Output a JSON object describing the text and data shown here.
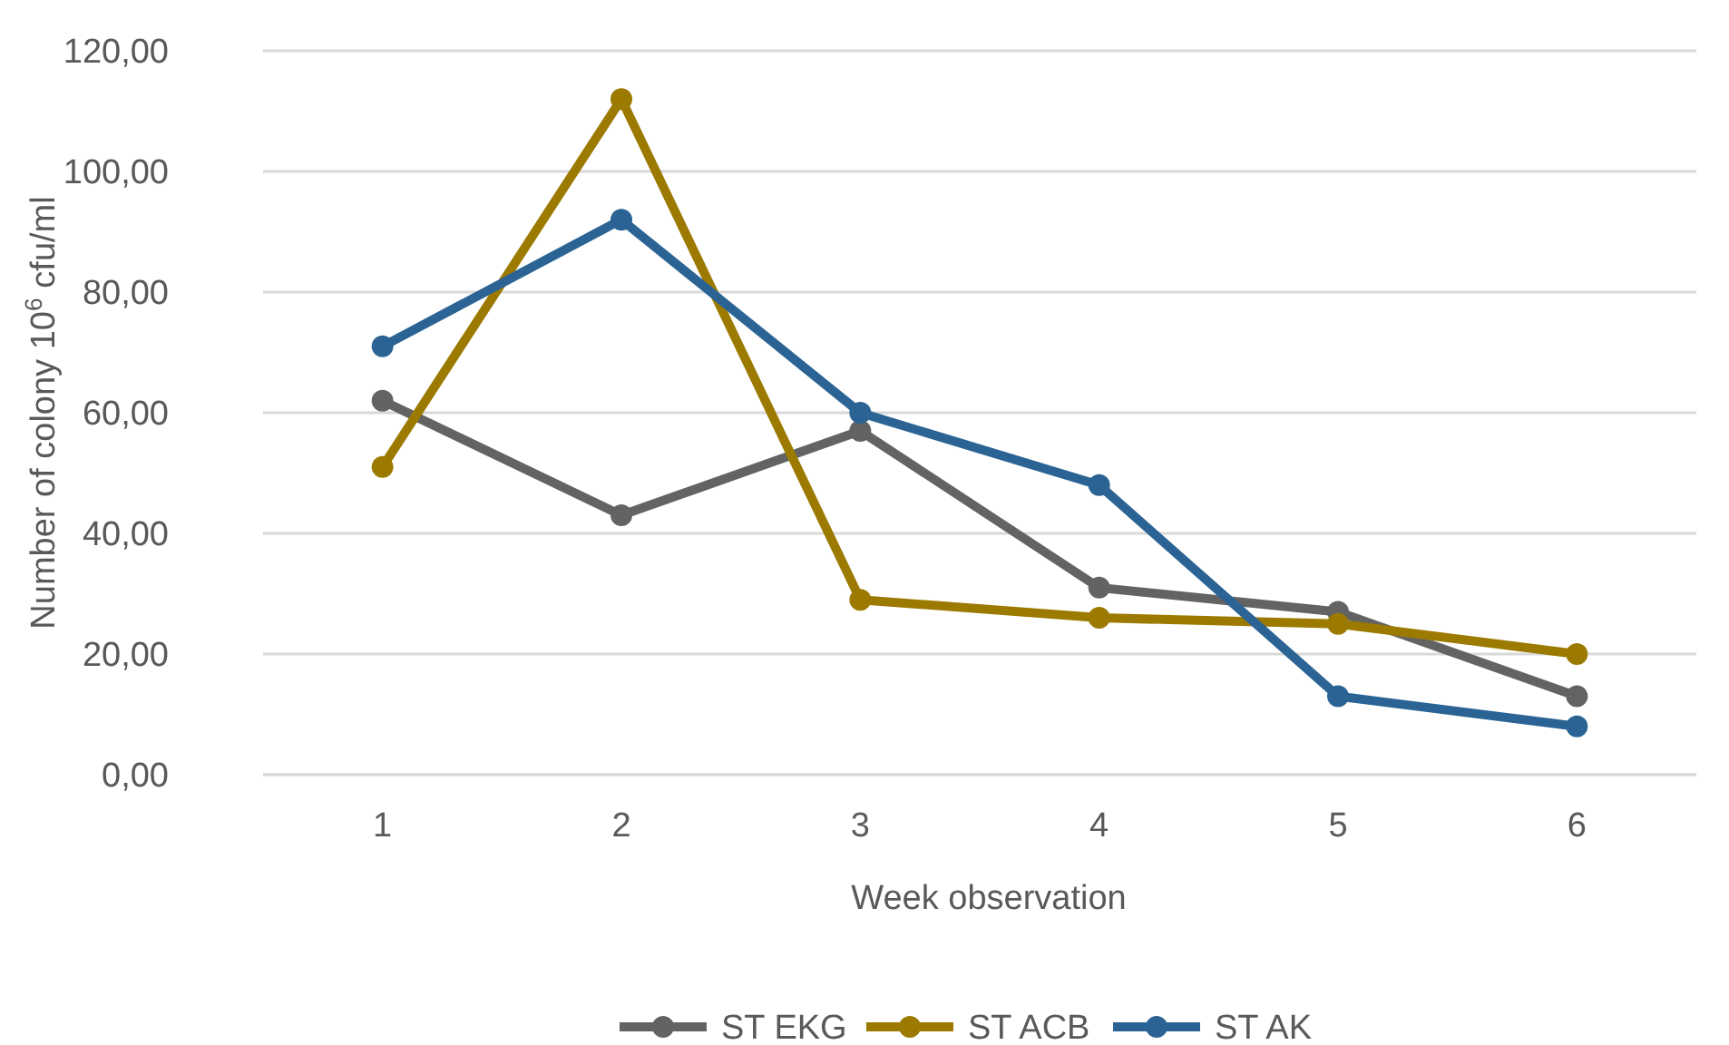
{
  "chart_data": {
    "type": "line",
    "xlabel": "Week observation",
    "ylabel": "Number of colony 10$^{6}$ cfu/ml",
    "categories": [
      "1",
      "2",
      "3",
      "4",
      "5",
      "6"
    ],
    "series": [
      {
        "name": "ST EKG",
        "color": "#636363",
        "values": [
          62,
          43,
          57,
          31,
          27,
          13
        ]
      },
      {
        "name": "ST ACB",
        "color": "#9c7a00",
        "values": [
          51,
          112,
          29,
          26,
          25,
          20
        ]
      },
      {
        "name": "ST AK",
        "color": "#2b6494",
        "values": [
          71,
          92,
          60,
          48,
          13,
          8
        ]
      }
    ],
    "ylim": [
      0,
      120
    ],
    "yticks": [
      {
        "value": 0,
        "label": "0,00"
      },
      {
        "value": 20,
        "label": "20,00"
      },
      {
        "value": 40,
        "label": "40,00"
      },
      {
        "value": 60,
        "label": "60,00"
      },
      {
        "value": 80,
        "label": "80,00"
      },
      {
        "value": 100,
        "label": "100,00"
      },
      {
        "value": 120,
        "label": "120,00"
      }
    ],
    "grid": "y",
    "legend": "bottom",
    "marker": "circle",
    "line_style": "solid"
  }
}
